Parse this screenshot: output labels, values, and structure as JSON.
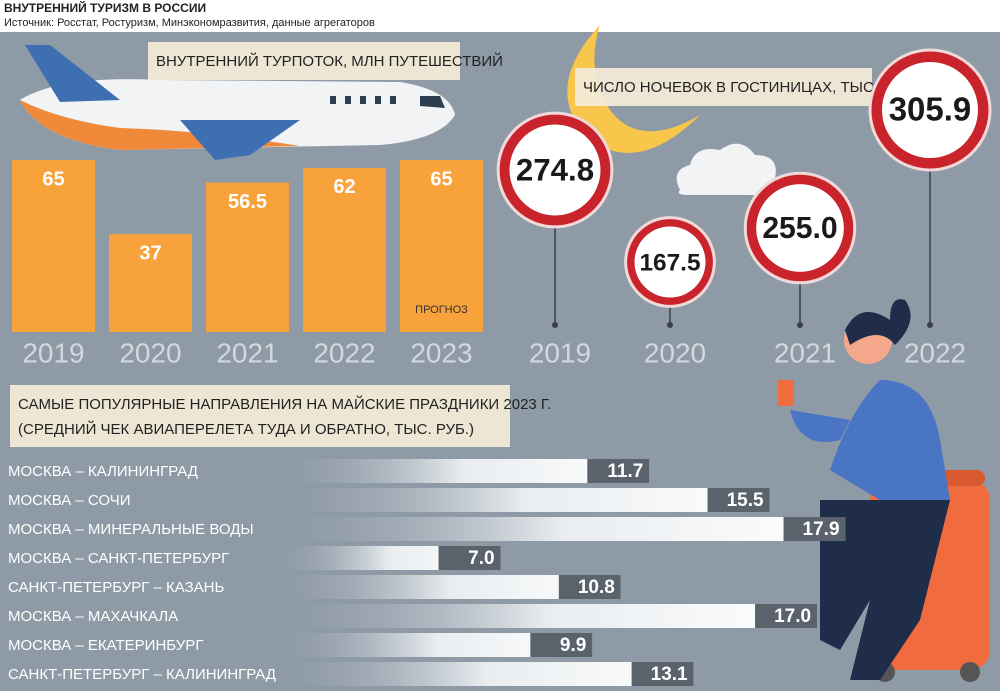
{
  "title": "ВНУТРЕННИЙ ТУРИЗМ В РОССИИ",
  "source": "Источник: Росстат, Ростуризм, Минэкономразвития, данные агрегаторов",
  "chart_data": [
    {
      "type": "bar",
      "title": "ВНУТРЕННИЙ ТУРПОТОК, МЛН ПУТЕШЕСТВИЙ",
      "categories": [
        "2019",
        "2020",
        "2021",
        "2022",
        "2023"
      ],
      "values": [
        65,
        37,
        56.5,
        62,
        65
      ],
      "color": "#f7a23b",
      "ylim": [
        0,
        65
      ],
      "annotation": "ПРОГНОЗ"
    },
    {
      "type": "circle",
      "title": "ЧИСЛО НОЧЕВОК В ГОСТИНИЦАХ, ТЫС. ЕД.",
      "categories": [
        "2019",
        "2020",
        "2021",
        "2022"
      ],
      "values": [
        274.8,
        167.5,
        255.0,
        305.9
      ],
      "value_labels": [
        "274.8",
        "167.5",
        "255.0",
        "305.9"
      ],
      "color": "#c9232c"
    },
    {
      "type": "hbar",
      "title": "САМЫЕ ПОПУЛЯРНЫЕ НАПРАВЛЕНИЯ НА МАЙСКИЕ ПРАЗДНИКИ 2023 Г.",
      "subtitle": "(СРЕДНИЙ ЧЕК АВИАПЕРЕЛЕТА ТУДА И ОБРАТНО, ТЫС. РУБ.)",
      "categories": [
        "МОСКВА – КАЛИНИНГРАД",
        "МОСКВА – СОЧИ",
        "МОСКВА – МИНЕРАЛЬНЫЕ ВОДЫ",
        "МОСКВА – САНКТ-ПЕТЕРБУРГ",
        "САНКТ-ПЕТЕРБУРГ – КАЗАНЬ",
        "МОСКВА – МАХАЧКАЛА",
        "МОСКВА – ЕКАТЕРИНБУРГ",
        "САНКТ-ПЕТЕРБУРГ – КАЛИНИНГРАД"
      ],
      "values": [
        11.7,
        15.5,
        17.9,
        7.0,
        10.8,
        17.0,
        9.9,
        13.1
      ],
      "value_labels": [
        "11.7",
        "15.5",
        "17.9",
        "7.0",
        "10.8",
        "17.0",
        "9.9",
        "13.1"
      ],
      "color": "#5a626c",
      "xlim": [
        0,
        20
      ]
    }
  ]
}
